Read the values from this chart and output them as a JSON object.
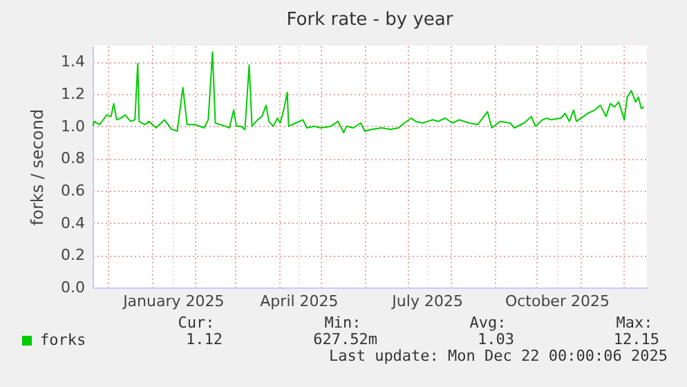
{
  "chart_data": {
    "type": "line",
    "title": "Fork rate - by year",
    "ylabel": "forks / second",
    "x": [
      "2024-11-20",
      "2024-11-21",
      "2024-11-25",
      "2024-11-30",
      "2024-12-03",
      "2024-12-05",
      "2024-12-07",
      "2024-12-10",
      "2024-12-13",
      "2024-12-17",
      "2024-12-20",
      "2024-12-22",
      "2024-12-23",
      "2024-12-27",
      "2024-12-30",
      "2025-01-04",
      "2025-01-10",
      "2025-01-15",
      "2025-01-19",
      "2025-01-23",
      "2025-01-26",
      "2025-02-01",
      "2025-02-07",
      "2025-02-10",
      "2025-02-13",
      "2025-02-15",
      "2025-02-22",
      "2025-02-25",
      "2025-02-28",
      "2025-03-02",
      "2025-03-05",
      "2025-03-08",
      "2025-03-11",
      "2025-03-13",
      "2025-03-17",
      "2025-03-20",
      "2025-03-23",
      "2025-03-25",
      "2025-03-28",
      "2025-03-31",
      "2025-04-02",
      "2025-04-05",
      "2025-04-07",
      "2025-04-08",
      "2025-04-13",
      "2025-04-18",
      "2025-04-21",
      "2025-04-26",
      "2025-05-01",
      "2025-05-08",
      "2025-05-13",
      "2025-05-17",
      "2025-05-19",
      "2025-05-24",
      "2025-05-29",
      "2025-06-01",
      "2025-06-06",
      "2025-06-13",
      "2025-06-19",
      "2025-06-25",
      "2025-06-29",
      "2025-07-04",
      "2025-07-07",
      "2025-07-12",
      "2025-07-19",
      "2025-07-23",
      "2025-07-28",
      "2025-08-02",
      "2025-08-07",
      "2025-08-14",
      "2025-08-20",
      "2025-08-27",
      "2025-08-30",
      "2025-09-05",
      "2025-09-12",
      "2025-09-15",
      "2025-09-22",
      "2025-09-27",
      "2025-09-30",
      "2025-10-05",
      "2025-10-08",
      "2025-10-11",
      "2025-10-18",
      "2025-10-21",
      "2025-10-24",
      "2025-10-27",
      "2025-10-29",
      "2025-11-03",
      "2025-11-06",
      "2025-11-11",
      "2025-11-15",
      "2025-11-19",
      "2025-11-22",
      "2025-11-25",
      "2025-11-28",
      "2025-12-02",
      "2025-12-04",
      "2025-12-07",
      "2025-12-10",
      "2025-12-12",
      "2025-12-14",
      "2025-12-16"
    ],
    "series": [
      {
        "name": "forks",
        "color": "#00cc00",
        "values": [
          1.0,
          1.03,
          1.01,
          1.07,
          1.06,
          1.14,
          1.04,
          1.05,
          1.07,
          1.03,
          1.04,
          1.39,
          1.03,
          1.01,
          1.03,
          0.99,
          1.04,
          0.98,
          0.97,
          1.24,
          1.01,
          1.01,
          0.99,
          1.04,
          1.46,
          1.02,
          1.0,
          0.99,
          1.1,
          1.0,
          1.0,
          0.98,
          1.38,
          1.0,
          1.04,
          1.06,
          1.13,
          1.03,
          1.0,
          1.05,
          1.02,
          1.12,
          1.21,
          1.0,
          1.02,
          1.04,
          0.99,
          1.0,
          0.99,
          1.0,
          1.03,
          0.96,
          1.0,
          0.99,
          1.02,
          0.97,
          0.98,
          0.99,
          0.98,
          0.99,
          1.02,
          1.05,
          1.03,
          1.02,
          1.04,
          1.03,
          1.05,
          1.02,
          1.04,
          1.02,
          1.01,
          1.09,
          0.99,
          1.03,
          1.02,
          0.99,
          1.02,
          1.06,
          1.0,
          1.04,
          1.05,
          1.04,
          1.05,
          1.08,
          1.03,
          1.1,
          1.03,
          1.06,
          1.08,
          1.1,
          1.13,
          1.06,
          1.14,
          1.12,
          1.15,
          1.04,
          1.18,
          1.22,
          1.15,
          1.18,
          1.11,
          1.12
        ]
      }
    ],
    "xlim": [
      "2024-11-20",
      "2025-12-18"
    ],
    "xticks": [
      {
        "value": "2024-12-01",
        "label": null
      },
      {
        "value": "2025-01-01",
        "label": null
      },
      {
        "value": "2025-01-16",
        "label": "January 2025"
      },
      {
        "value": "2025-02-01",
        "label": null
      },
      {
        "value": "2025-03-01",
        "label": null
      },
      {
        "value": "2025-04-01",
        "label": null
      },
      {
        "value": "2025-04-15",
        "label": "April 2025"
      },
      {
        "value": "2025-05-01",
        "label": null
      },
      {
        "value": "2025-06-01",
        "label": null
      },
      {
        "value": "2025-07-01",
        "label": null
      },
      {
        "value": "2025-07-15",
        "label": "July 2025"
      },
      {
        "value": "2025-08-01",
        "label": null
      },
      {
        "value": "2025-09-01",
        "label": null
      },
      {
        "value": "2025-10-01",
        "label": null
      },
      {
        "value": "2025-10-15",
        "label": "October 2025"
      },
      {
        "value": "2025-11-01",
        "label": null
      },
      {
        "value": "2025-12-01",
        "label": null
      }
    ],
    "ylim": [
      0,
      1.5
    ],
    "yticks": [
      {
        "value": 0,
        "label": "0.0"
      },
      {
        "value": 0.2,
        "label": "0.2"
      },
      {
        "value": 0.4,
        "label": "0.4"
      },
      {
        "value": 0.6,
        "label": "0.6"
      },
      {
        "value": 0.8,
        "label": "0.8"
      },
      {
        "value": 1.0,
        "label": "1.0"
      },
      {
        "value": 1.2,
        "label": "1.2"
      },
      {
        "value": 1.4,
        "label": "1.4"
      }
    ],
    "grid": true,
    "legend": "bottom",
    "marker": "none",
    "line_style": "solid",
    "annotations": [
      "Cur:",
      "Min:",
      "Avg:",
      "Max:",
      "1.12",
      "627.52m",
      "1.03",
      "12.15",
      "Last update: Mon Dec 22 00:00:06 2025"
    ]
  }
}
